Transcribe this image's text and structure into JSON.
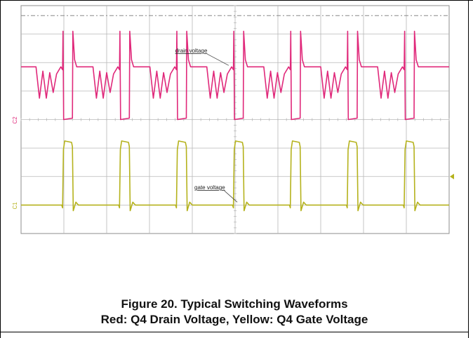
{
  "figure": {
    "caption_line1": "Figure 20. Typical Switching Waveforms",
    "caption_line2": "Red: Q4 Drain Voltage, Yellow: Q4 Gate Voltage"
  },
  "chart_data": {
    "type": "line",
    "title": "",
    "xlabel": "",
    "ylabel": "",
    "grid": true,
    "x_divisions": 10,
    "y_divisions": 8,
    "xlim": [
      0,
      10
    ],
    "ylim": [
      0,
      8
    ],
    "annotations": [
      "drain voltage",
      "gate voltage"
    ],
    "channel_markers": [
      "C2",
      "C1"
    ],
    "colors": {
      "drain": "#e0287a",
      "gate": "#b5b21c",
      "grid": "#b8b8b8",
      "frame": "#8c8c8c"
    },
    "series": [
      {
        "channel": "C2",
        "period_div": 1.33,
        "pulse_offsets": [
          0.97,
          2.3,
          3.63,
          4.96,
          6.29,
          7.62,
          8.95
        ],
        "pulse_width_div": 0.23,
        "high_level_div": 5.85,
        "low_level_div": 4.0,
        "ground_level_div": 4.05,
        "overshoot_level_div": 7.1,
        "ringing_levels_div": [
          4.75,
          5.7,
          4.75,
          5.65,
          4.95,
          5.6
        ],
        "ringing_start_offset_div": -0.62
      },
      {
        "channel": "C1",
        "period_div": 1.33,
        "pulse_offsets": [
          0.97,
          2.3,
          3.63,
          4.96,
          6.29,
          7.62,
          8.95
        ],
        "pulse_width_div": 0.23,
        "high_level_div": 3.25,
        "low_level_div": 1.0,
        "ground_level_div": 1.05
      }
    ]
  }
}
